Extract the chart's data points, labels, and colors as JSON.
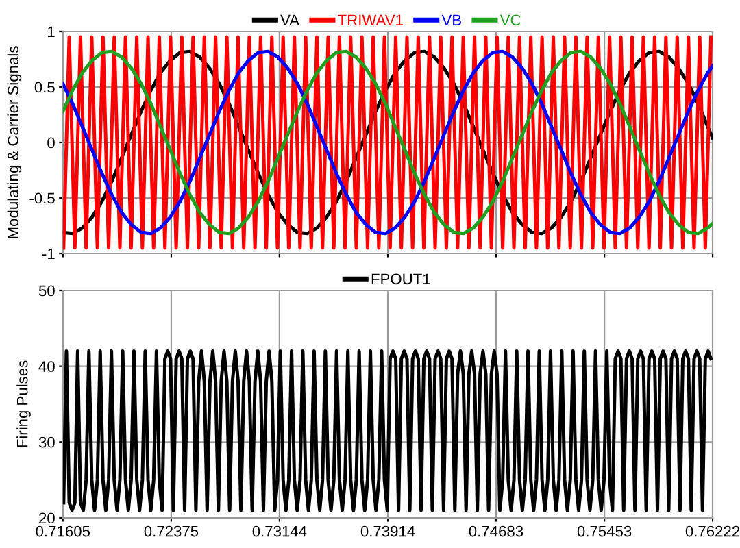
{
  "chart_data": [
    {
      "type": "line",
      "ylabel": "Modulating & Carrier Signals",
      "xlim": [
        0.71605,
        0.76222
      ],
      "ylim": [
        -1,
        1
      ],
      "xticks": [
        0.71605,
        0.72375,
        0.73144,
        0.73914,
        0.74683,
        0.75453,
        0.76222
      ],
      "yticks": [
        -1,
        -0.5,
        0,
        0.5,
        1
      ],
      "tick_labels": "y",
      "grid": true,
      "legend": "top",
      "line_style": "solid",
      "x": [
        0.71605,
        0.71674,
        0.71744,
        0.71813,
        0.71883,
        0.71952,
        0.72022,
        0.72091,
        0.72161,
        0.7223,
        0.72299,
        0.72369,
        0.72438,
        0.72508,
        0.72577,
        0.72647,
        0.72716,
        0.72786,
        0.72855,
        0.72924,
        0.72994,
        0.73063,
        0.73133,
        0.73202,
        0.73272,
        0.73341,
        0.73411,
        0.7348,
        0.73549,
        0.73619,
        0.73688,
        0.73758,
        0.73827,
        0.73897,
        0.73966,
        0.74036,
        0.74105,
        0.74174,
        0.74244,
        0.74313,
        0.74383,
        0.74452,
        0.74522,
        0.74591,
        0.74661,
        0.7473,
        0.74799,
        0.74869,
        0.74938,
        0.75008,
        0.75077,
        0.75147,
        0.75216,
        0.75286,
        0.75355,
        0.75424,
        0.75494,
        0.75563,
        0.75633,
        0.75702,
        0.75772,
        0.75841,
        0.75911,
        0.7598,
        0.76049,
        0.76119,
        0.76188,
        0.76222
      ],
      "series": [
        {
          "name": "VA",
          "color": "#000000",
          "values": [
            -0.81,
            -0.82,
            -0.77,
            -0.67,
            -0.53,
            -0.35,
            -0.14,
            0.07,
            0.28,
            0.47,
            0.63,
            0.74,
            0.81,
            0.82,
            0.77,
            0.67,
            0.53,
            0.35,
            0.14,
            -0.07,
            -0.28,
            -0.47,
            -0.63,
            -0.74,
            -0.81,
            -0.82,
            -0.77,
            -0.67,
            -0.53,
            -0.35,
            -0.14,
            0.07,
            0.28,
            0.47,
            0.63,
            0.74,
            0.81,
            0.82,
            0.77,
            0.67,
            0.53,
            0.35,
            0.14,
            -0.07,
            -0.28,
            -0.47,
            -0.63,
            -0.74,
            -0.81,
            -0.82,
            -0.77,
            -0.67,
            -0.53,
            -0.35,
            -0.14,
            0.07,
            0.28,
            0.47,
            0.63,
            0.74,
            0.81,
            0.82,
            0.77,
            0.67,
            0.53,
            0.35,
            0.14,
            0.04
          ]
        },
        {
          "name": "TRIWAV1",
          "color": "#ff0000",
          "x": [
            0.7161,
            0.7165,
            0.7169,
            0.7173,
            0.7177,
            0.7181,
            0.7185,
            0.7189,
            0.7193,
            0.7197,
            0.7201,
            0.7205,
            0.7209,
            0.7213,
            0.7217,
            0.7221,
            0.7225,
            0.7229,
            0.7233,
            0.7237,
            0.7241,
            0.7245,
            0.7249,
            0.7253,
            0.7257,
            0.7261,
            0.7265,
            0.7269,
            0.7273,
            0.7277,
            0.7281,
            0.7285,
            0.7289,
            0.7293,
            0.7297,
            0.7301,
            0.7305,
            0.7309,
            0.7313,
            0.7317,
            0.7321,
            0.7325,
            0.7329,
            0.7333,
            0.7337,
            0.7341,
            0.7345,
            0.7349,
            0.7353,
            0.7357,
            0.7361,
            0.7365,
            0.7369,
            0.7373,
            0.7377,
            0.7381,
            0.7385,
            0.7389,
            0.7393,
            0.7397,
            0.7401,
            0.7405,
            0.7409,
            0.7413,
            0.7417,
            0.7421,
            0.7425,
            0.7429,
            0.7433,
            0.7437,
            0.7441,
            0.7445,
            0.7449,
            0.7453,
            0.7457,
            0.7461,
            0.7465,
            0.7469,
            0.7473,
            0.7477,
            0.7481,
            0.7485,
            0.7489,
            0.7493,
            0.7497,
            0.7501,
            0.7505,
            0.7509,
            0.7513,
            0.7517,
            0.7521,
            0.7525,
            0.7529,
            0.7533,
            0.7537,
            0.7541,
            0.7545,
            0.7549,
            0.7553,
            0.7557,
            0.7561,
            0.7565,
            0.7569,
            0.7573,
            0.7577,
            0.7581,
            0.7585,
            0.7589,
            0.7593,
            0.7597,
            0.7601,
            0.7605,
            0.7609,
            0.7613,
            0.7617,
            0.7621
          ],
          "values": [
            -0.95,
            0.95,
            -0.95,
            0.95,
            -0.95,
            0.95,
            -0.95,
            0.95,
            -0.95,
            0.95,
            -0.95,
            0.95,
            -0.95,
            0.95,
            -0.95,
            0.95,
            -0.95,
            0.95,
            -0.95,
            0.95,
            -0.95,
            0.95,
            -0.95,
            0.95,
            -0.95,
            0.95,
            -0.95,
            0.95,
            -0.95,
            0.95,
            -0.95,
            0.95,
            -0.95,
            0.95,
            -0.95,
            0.95,
            -0.95,
            0.95,
            -0.95,
            0.95,
            -0.95,
            0.95,
            -0.95,
            0.95,
            -0.95,
            0.95,
            -0.95,
            0.95,
            -0.95,
            0.95,
            -0.95,
            0.95,
            -0.95,
            0.95,
            -0.95,
            0.95,
            -0.95,
            0.95,
            -0.95,
            0.95,
            -0.95,
            0.95,
            -0.95,
            0.95,
            -0.95,
            0.95,
            -0.95,
            0.95,
            -0.95,
            0.95,
            -0.95,
            0.95,
            -0.95,
            0.95,
            -0.95,
            0.95,
            -0.95,
            0.95,
            -0.95,
            0.95,
            -0.95,
            0.95,
            -0.95,
            0.95,
            -0.95,
            0.95,
            -0.95,
            0.95,
            -0.95,
            0.95,
            -0.95,
            0.95,
            -0.95,
            0.95,
            -0.95,
            0.95,
            -0.95,
            0.95,
            -0.95,
            0.95,
            -0.95,
            0.95,
            -0.95,
            0.95,
            -0.95,
            0.95,
            -0.95,
            0.95,
            -0.95,
            0.95,
            -0.95,
            0.95,
            -0.95,
            0.95,
            -0.95,
            0.95
          ]
        },
        {
          "name": "VB",
          "color": "#0000ff",
          "values": [
            0.53,
            0.35,
            0.14,
            -0.07,
            -0.28,
            -0.47,
            -0.63,
            -0.74,
            -0.81,
            -0.82,
            -0.77,
            -0.67,
            -0.53,
            -0.35,
            -0.14,
            0.07,
            0.28,
            0.47,
            0.63,
            0.74,
            0.81,
            0.82,
            0.77,
            0.67,
            0.53,
            0.35,
            0.14,
            -0.07,
            -0.28,
            -0.47,
            -0.63,
            -0.74,
            -0.81,
            -0.82,
            -0.77,
            -0.67,
            -0.53,
            -0.35,
            -0.14,
            0.07,
            0.28,
            0.47,
            0.63,
            0.74,
            0.81,
            0.82,
            0.77,
            0.67,
            0.53,
            0.35,
            0.14,
            -0.07,
            -0.28,
            -0.47,
            -0.63,
            -0.74,
            -0.81,
            -0.82,
            -0.77,
            -0.67,
            -0.53,
            -0.35,
            -0.14,
            0.07,
            0.28,
            0.47,
            0.63,
            0.69
          ]
        },
        {
          "name": "VC",
          "color": "#20a020",
          "values": [
            0.28,
            0.47,
            0.63,
            0.74,
            0.81,
            0.82,
            0.77,
            0.67,
            0.53,
            0.35,
            0.14,
            -0.07,
            -0.28,
            -0.47,
            -0.63,
            -0.74,
            -0.81,
            -0.82,
            -0.77,
            -0.67,
            -0.53,
            -0.35,
            -0.14,
            0.07,
            0.28,
            0.47,
            0.63,
            0.74,
            0.81,
            0.82,
            0.77,
            0.67,
            0.53,
            0.35,
            0.14,
            -0.07,
            -0.28,
            -0.47,
            -0.63,
            -0.74,
            -0.81,
            -0.82,
            -0.77,
            -0.67,
            -0.53,
            -0.35,
            -0.14,
            0.07,
            0.28,
            0.47,
            0.63,
            0.74,
            0.81,
            0.82,
            0.77,
            0.67,
            0.53,
            0.35,
            0.14,
            -0.07,
            -0.28,
            -0.47,
            -0.63,
            -0.74,
            -0.81,
            -0.82,
            -0.77,
            -0.73
          ]
        }
      ]
    },
    {
      "type": "line",
      "ylabel": "Firing Pulses",
      "xlim": [
        0.71605,
        0.76222
      ],
      "ylim": [
        20,
        50
      ],
      "xticks": [
        0.71605,
        0.72375,
        0.73144,
        0.73914,
        0.74683,
        0.75453,
        0.76222
      ],
      "yticks": [
        20,
        30,
        40,
        50
      ],
      "grid": true,
      "legend": "top",
      "line_style": "solid",
      "x": [
        0.7161,
        0.7163,
        0.7165,
        0.7167,
        0.7169,
        0.7171,
        0.7173,
        0.7175,
        0.7177,
        0.7179,
        0.7181,
        0.7183,
        0.7185,
        0.7187,
        0.7189,
        0.7191,
        0.7193,
        0.7195,
        0.7197,
        0.7199,
        0.7201,
        0.7203,
        0.7205,
        0.7207,
        0.7209,
        0.7211,
        0.7213,
        0.7215,
        0.7217,
        0.7219,
        0.7221,
        0.7223,
        0.7225,
        0.7227,
        0.7229,
        0.7231,
        0.7233,
        0.7235,
        0.7237,
        0.7239,
        0.7241,
        0.7243,
        0.7245,
        0.7247,
        0.7249,
        0.7251,
        0.7253,
        0.7255,
        0.7257,
        0.7259,
        0.7261,
        0.7263,
        0.7265,
        0.7267,
        0.7269,
        0.7271,
        0.7273,
        0.7275,
        0.7277,
        0.7279,
        0.7281,
        0.7283,
        0.7285,
        0.7287,
        0.7289,
        0.7291,
        0.7293,
        0.7295,
        0.7297,
        0.7299,
        0.7301,
        0.7303,
        0.7305,
        0.7307,
        0.7309,
        0.7311,
        0.7313,
        0.7315,
        0.7317,
        0.7319,
        0.7321,
        0.7323,
        0.7325,
        0.7327,
        0.7329,
        0.7331,
        0.7333,
        0.7335,
        0.7337,
        0.7339,
        0.7341,
        0.7343,
        0.7345,
        0.7347,
        0.7349,
        0.7351,
        0.7353,
        0.7355,
        0.7357,
        0.7359,
        0.7361,
        0.7363,
        0.7365,
        0.7367,
        0.7369,
        0.7371,
        0.7373,
        0.7375,
        0.7377,
        0.7379,
        0.7381,
        0.7383,
        0.7385,
        0.7387,
        0.7389,
        0.7391,
        0.7393,
        0.7395,
        0.7397,
        0.7399,
        0.7401,
        0.7403,
        0.7405,
        0.7407,
        0.7409,
        0.7411,
        0.7413,
        0.7415,
        0.7417,
        0.7419,
        0.7421,
        0.7423,
        0.7425,
        0.7427,
        0.7429,
        0.7431,
        0.7433,
        0.7435,
        0.7437,
        0.7439,
        0.7441,
        0.7443,
        0.7445,
        0.7447,
        0.7449,
        0.7451,
        0.7453,
        0.7455,
        0.7457,
        0.7459,
        0.7461,
        0.7463,
        0.7465,
        0.7467,
        0.7469,
        0.7471,
        0.7473,
        0.7475,
        0.7477,
        0.7479,
        0.7481,
        0.7483,
        0.7485,
        0.7487,
        0.7489,
        0.7491,
        0.7493,
        0.7495,
        0.7497,
        0.7499,
        0.7501,
        0.7503,
        0.7505,
        0.7507,
        0.7509,
        0.7511,
        0.7513,
        0.7515,
        0.7517,
        0.7519,
        0.7521,
        0.7523,
        0.7525,
        0.7527,
        0.7529,
        0.7531,
        0.7533,
        0.7535,
        0.7537,
        0.7539,
        0.7541,
        0.7543,
        0.7545,
        0.7547,
        0.7549,
        0.7551,
        0.7553,
        0.7555,
        0.7557,
        0.7559,
        0.7561,
        0.7563,
        0.7565,
        0.7567,
        0.7569,
        0.7571,
        0.7573,
        0.7575,
        0.7577,
        0.7579,
        0.7581,
        0.7583,
        0.7585,
        0.7587,
        0.7589,
        0.7591,
        0.7593,
        0.7595,
        0.7597,
        0.7599,
        0.7601,
        0.7603,
        0.7605,
        0.7607,
        0.7609,
        0.7611,
        0.7613,
        0.7615,
        0.7617,
        0.7619,
        0.7621
      ],
      "series": [
        {
          "name": "FPOUT1",
          "color": "#000000",
          "values": [
            22,
            42,
            22,
            21,
            22,
            42,
            22,
            21,
            25,
            42,
            25,
            21,
            25,
            42,
            25,
            21,
            25,
            42,
            25,
            21,
            25,
            42,
            25,
            21,
            25,
            42,
            25,
            21,
            25,
            42,
            25,
            21,
            25,
            42,
            25,
            21,
            41,
            42,
            41,
            21,
            41,
            42,
            41,
            21,
            41,
            42,
            41,
            21,
            38,
            42,
            38,
            21,
            38,
            42,
            38,
            21,
            38,
            42,
            38,
            21,
            38,
            42,
            38,
            21,
            38,
            42,
            38,
            21,
            38,
            42,
            38,
            21,
            38,
            42,
            38,
            21,
            25,
            42,
            25,
            21,
            25,
            42,
            25,
            21,
            25,
            42,
            25,
            21,
            25,
            42,
            25,
            21,
            25,
            42,
            25,
            21,
            25,
            42,
            25,
            21,
            25,
            42,
            25,
            21,
            25,
            42,
            25,
            21,
            25,
            42,
            25,
            21,
            25,
            42,
            25,
            21,
            41,
            42,
            41,
            21,
            41,
            42,
            41,
            21,
            41,
            42,
            41,
            21,
            41,
            42,
            41,
            21,
            41,
            42,
            41,
            21,
            41,
            42,
            41,
            21,
            39,
            42,
            39,
            21,
            39,
            42,
            39,
            21,
            39,
            42,
            39,
            21,
            39,
            42,
            39,
            21,
            25,
            42,
            25,
            21,
            25,
            42,
            25,
            21,
            25,
            42,
            25,
            21,
            25,
            42,
            25,
            21,
            25,
            42,
            25,
            21,
            25,
            42,
            25,
            21,
            25,
            42,
            25,
            21,
            25,
            42,
            25,
            21,
            25,
            42,
            25,
            21,
            25,
            42,
            25,
            21,
            41,
            42,
            41,
            21,
            41,
            42,
            41,
            21,
            41,
            42,
            41,
            21,
            41,
            42,
            41,
            21,
            41,
            42,
            41,
            21,
            41,
            42,
            41,
            21,
            41,
            42,
            41,
            21,
            41,
            42,
            41,
            21,
            41,
            42,
            41
          ]
        }
      ]
    }
  ]
}
